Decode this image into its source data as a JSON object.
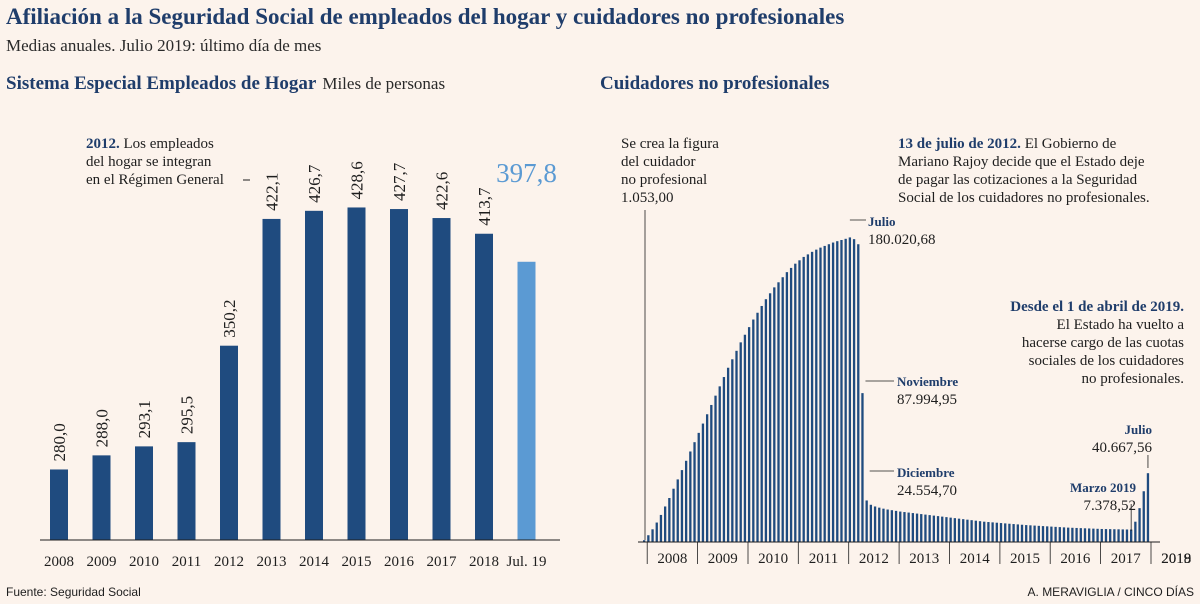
{
  "header": {
    "title": "Afiliación a la Seguridad Social de empleados del hogar y cuidadores no profesionales",
    "subtitle": "Medias anuales. Julio  2019: último día de mes"
  },
  "left_section": {
    "title": "Sistema Especial Empleados de Hogar",
    "unit": "Miles de personas"
  },
  "right_section": {
    "title": "Cuidadores no profesionales"
  },
  "annotations": {
    "left_2012_bold": "2012.",
    "left_2012_lines": [
      " Los empleados",
      "del hogar se integran",
      "en el Régimen General"
    ],
    "right_start_lines": [
      "Se crea la figura",
      "del cuidador",
      "no profesional",
      "1.053,00"
    ],
    "right_july2012_bold": "13 de julio de 2012.",
    "right_july2012_lines": [
      " El Gobierno de",
      "Mariano Rajoy decide que el Estado deje",
      "de pagar las cotizaciones a la Seguridad",
      "Social de los cuidadores no profesionales."
    ],
    "right_april2019_bold": "Desde el 1 de abril de 2019.",
    "right_april2019_lines": [
      "El Estado ha vuelto a",
      "hacerse cargo de las cuotas",
      "sociales de los cuidadores",
      "no profesionales."
    ],
    "peak_month": "Julio",
    "peak_value": "180.020,68",
    "nov_month": "Noviembre",
    "nov_value": "87.994,95",
    "dec_month": "Diciembre",
    "dec_value": "24.554,70",
    "mar2019_month": "Marzo 2019",
    "mar2019_value": "7.378,52",
    "jul2019_month": "Julio",
    "jul2019_value": "40.667,56"
  },
  "footer": {
    "source": "Fuente: Seguridad Social",
    "credit": "A. MERAVIGLIA / CINCO DÍAS"
  },
  "colors": {
    "dark_bar": "#1f4b7f",
    "highlight_bar": "#5b9ad3",
    "background": "#fcf3ec",
    "title": "#1f3d6b"
  },
  "chart_data": [
    {
      "type": "bar",
      "title": "Sistema Especial Empleados de Hogar",
      "ylabel": "Miles de personas",
      "categories": [
        "2008",
        "2009",
        "2010",
        "2011",
        "2012",
        "2013",
        "2014",
        "2015",
        "2016",
        "2017",
        "2018",
        "Jul. 19"
      ],
      "values": [
        280.0,
        288.0,
        293.1,
        295.5,
        350.2,
        422.1,
        426.7,
        428.6,
        427.7,
        422.6,
        413.7,
        397.8
      ],
      "value_labels": [
        "280,0",
        "288,0",
        "293,1",
        "295,5",
        "350,2",
        "422,1",
        "426,7",
        "428,6",
        "427,7",
        "422,6",
        "413,7",
        "397,8"
      ],
      "highlight_index": 11,
      "ylim": [
        0,
        430
      ]
    },
    {
      "type": "bar",
      "title": "Cuidadores no profesionales",
      "x_tick_labels": [
        "2008",
        "2009",
        "2010",
        "2011",
        "2012",
        "2013",
        "2014",
        "2015",
        "2016",
        "2017",
        "2018",
        "2019"
      ],
      "start": "2007-12",
      "values": [
        1053,
        4000,
        7500,
        11500,
        16000,
        21000,
        26000,
        31500,
        37000,
        42500,
        48000,
        53500,
        59000,
        64500,
        70000,
        75500,
        81000,
        86500,
        92000,
        97500,
        103000,
        108000,
        113000,
        118000,
        122500,
        127000,
        131500,
        135500,
        139500,
        143500,
        147000,
        150500,
        153500,
        156500,
        159500,
        162000,
        164500,
        166500,
        168500,
        170000,
        171500,
        172800,
        174000,
        175000,
        176000,
        177000,
        177800,
        178500,
        179200,
        180020.68,
        179000,
        176000,
        87994.95,
        24554.7,
        22000,
        21000,
        20300,
        19700,
        19200,
        18800,
        18400,
        18000,
        17700,
        17400,
        17100,
        16800,
        16500,
        16200,
        15900,
        15600,
        15300,
        15000,
        14700,
        14400,
        14100,
        13800,
        13500,
        13200,
        12900,
        12600,
        12300,
        12000,
        11800,
        11600,
        11400,
        11200,
        11000,
        10800,
        10600,
        10400,
        10200,
        10000,
        9850,
        9700,
        9550,
        9400,
        9250,
        9100,
        8950,
        8800,
        8650,
        8500,
        8400,
        8300,
        8200,
        8100,
        8000,
        7900,
        7800,
        7700,
        7650,
        7600,
        7550,
        7500,
        7450,
        7400,
        7378.52,
        12000,
        20000,
        30000,
        40667.56
      ],
      "labeled_points": [
        {
          "label": "Julio 2012",
          "value": 180020.68
        },
        {
          "label": "Noviembre 2012",
          "value": 87994.95
        },
        {
          "label": "Diciembre 2012",
          "value": 24554.7
        },
        {
          "label": "Marzo 2019",
          "value": 7378.52
        },
        {
          "label": "Julio 2019",
          "value": 40667.56
        }
      ],
      "ylim": [
        0,
        185000
      ]
    }
  ]
}
